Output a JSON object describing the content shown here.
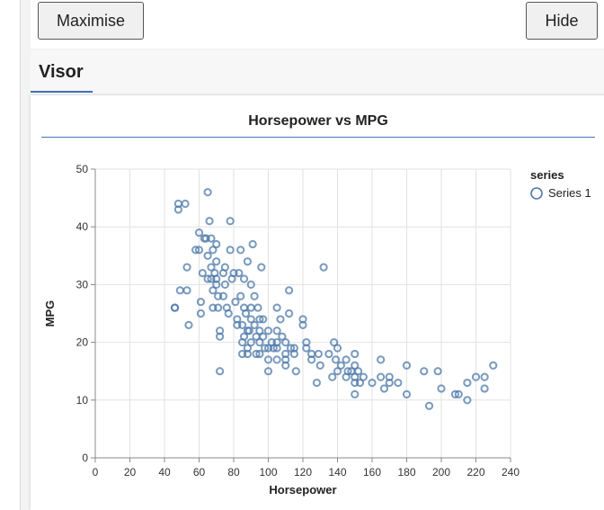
{
  "toolbar": {
    "maximise_label": "Maximise",
    "hide_label": "Hide"
  },
  "tabs": [
    {
      "label": "Visor",
      "active": true
    }
  ],
  "colors": {
    "accent": "#3b73b9",
    "point": "#4c78a8"
  },
  "chart_data": {
    "type": "scatter",
    "title": "Horsepower vs MPG",
    "xlabel": "Horsepower",
    "ylabel": "MPG",
    "xlim": [
      0,
      240
    ],
    "ylim": [
      0,
      50
    ],
    "xticks": [
      0,
      20,
      40,
      60,
      80,
      100,
      120,
      140,
      160,
      180,
      200,
      220,
      240
    ],
    "yticks": [
      0,
      10,
      20,
      30,
      40,
      50
    ],
    "grid": true,
    "legend": {
      "title": "series",
      "position": "right"
    },
    "series": [
      {
        "name": "Series 1",
        "points": [
          [
            46,
            26
          ],
          [
            46,
            26
          ],
          [
            48,
            43
          ],
          [
            48,
            44
          ],
          [
            49,
            29
          ],
          [
            52,
            44
          ],
          [
            53,
            33
          ],
          [
            53,
            29
          ],
          [
            54,
            23
          ],
          [
            58,
            36
          ],
          [
            60,
            39
          ],
          [
            60,
            36
          ],
          [
            61,
            27
          ],
          [
            61,
            25
          ],
          [
            62,
            32
          ],
          [
            63,
            38
          ],
          [
            64,
            38
          ],
          [
            65,
            31
          ],
          [
            65,
            35
          ],
          [
            65,
            46
          ],
          [
            66,
            41
          ],
          [
            67,
            38
          ],
          [
            67,
            33
          ],
          [
            67,
            31
          ],
          [
            68,
            36
          ],
          [
            68,
            29
          ],
          [
            68,
            26
          ],
          [
            69,
            32
          ],
          [
            70,
            37
          ],
          [
            70,
            34
          ],
          [
            70,
            31
          ],
          [
            70,
            30
          ],
          [
            71,
            28
          ],
          [
            71,
            26
          ],
          [
            72,
            22
          ],
          [
            72,
            21
          ],
          [
            72,
            15
          ],
          [
            74,
            32
          ],
          [
            74,
            28
          ],
          [
            75,
            33
          ],
          [
            75,
            30
          ],
          [
            76,
            26
          ],
          [
            77,
            25
          ],
          [
            78,
            36
          ],
          [
            78,
            41
          ],
          [
            79,
            31
          ],
          [
            80,
            32
          ],
          [
            81,
            27
          ],
          [
            82,
            24
          ],
          [
            82,
            23
          ],
          [
            83,
            32
          ],
          [
            84,
            36
          ],
          [
            84,
            28
          ],
          [
            85,
            23
          ],
          [
            85,
            20
          ],
          [
            85,
            18
          ],
          [
            86,
            31
          ],
          [
            86,
            26
          ],
          [
            86,
            21
          ],
          [
            87,
            25
          ],
          [
            88,
            34
          ],
          [
            88,
            22
          ],
          [
            88,
            18
          ],
          [
            88,
            19
          ],
          [
            89,
            22
          ],
          [
            90,
            30
          ],
          [
            90,
            26
          ],
          [
            90,
            24
          ],
          [
            90,
            20
          ],
          [
            91,
            37
          ],
          [
            92,
            28
          ],
          [
            92,
            23
          ],
          [
            93,
            21
          ],
          [
            93,
            18
          ],
          [
            94,
            26
          ],
          [
            95,
            24
          ],
          [
            95,
            22
          ],
          [
            95,
            20
          ],
          [
            95,
            18
          ],
          [
            96,
            33
          ],
          [
            97,
            24
          ],
          [
            97,
            21
          ],
          [
            98,
            19
          ],
          [
            100,
            17
          ],
          [
            100,
            19
          ],
          [
            100,
            22
          ],
          [
            100,
            15
          ],
          [
            102,
            20
          ],
          [
            103,
            19
          ],
          [
            105,
            26
          ],
          [
            105,
            22
          ],
          [
            105,
            20
          ],
          [
            105,
            19
          ],
          [
            105,
            17
          ],
          [
            107,
            24
          ],
          [
            108,
            21
          ],
          [
            110,
            20
          ],
          [
            110,
            18
          ],
          [
            110,
            17
          ],
          [
            110,
            16
          ],
          [
            112,
            25
          ],
          [
            112,
            29
          ],
          [
            113,
            19
          ],
          [
            115,
            19
          ],
          [
            115,
            18
          ],
          [
            116,
            15
          ],
          [
            120,
            24
          ],
          [
            120,
            23
          ],
          [
            122,
            19
          ],
          [
            122,
            20
          ],
          [
            125,
            18
          ],
          [
            125,
            17
          ],
          [
            128,
            13
          ],
          [
            129,
            18
          ],
          [
            130,
            16
          ],
          [
            132,
            33
          ],
          [
            135,
            18
          ],
          [
            137,
            14
          ],
          [
            138,
            20
          ],
          [
            139,
            17
          ],
          [
            140,
            19
          ],
          [
            140,
            15
          ],
          [
            142,
            16
          ],
          [
            145,
            17
          ],
          [
            145,
            14
          ],
          [
            146,
            15
          ],
          [
            148,
            15
          ],
          [
            150,
            18
          ],
          [
            150,
            16
          ],
          [
            150,
            14
          ],
          [
            150,
            13
          ],
          [
            150,
            11
          ],
          [
            152,
            15
          ],
          [
            153,
            13
          ],
          [
            155,
            14
          ],
          [
            160,
            13
          ],
          [
            165,
            17
          ],
          [
            165,
            14
          ],
          [
            167,
            12
          ],
          [
            170,
            14
          ],
          [
            170,
            13
          ],
          [
            175,
            13
          ],
          [
            180,
            16
          ],
          [
            180,
            11
          ],
          [
            190,
            15
          ],
          [
            193,
            9
          ],
          [
            198,
            15
          ],
          [
            200,
            12
          ],
          [
            208,
            11
          ],
          [
            210,
            11
          ],
          [
            215,
            13
          ],
          [
            215,
            10
          ],
          [
            220,
            14
          ],
          [
            225,
            14
          ],
          [
            225,
            12
          ],
          [
            230,
            16
          ]
        ]
      }
    ]
  }
}
